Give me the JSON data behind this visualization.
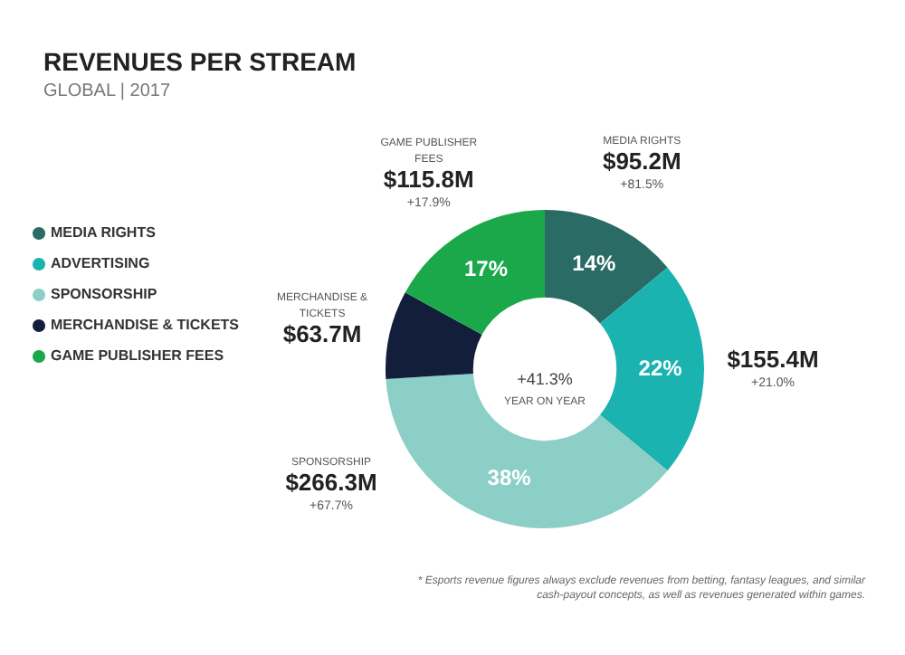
{
  "chart_data": {
    "type": "donut",
    "title": "REVENUES PER STREAM",
    "subtitle": "GLOBAL | 2017",
    "categories": [
      "MEDIA RIGHTS",
      "ADVERTISING",
      "SPONSORSHIP",
      "MERCHANDISE & TICKETS",
      "GAME PUBLISHER FEES"
    ],
    "values": [
      14,
      22,
      38,
      9,
      17
    ],
    "colors": [
      "#2a6b66",
      "#1ab3b0",
      "#8ccfc6",
      "#131f3a",
      "#1aa84a"
    ],
    "value_labels": [
      "14%",
      "22%",
      "38%",
      null,
      "17%"
    ],
    "legend": "left",
    "annotations": [
      {
        "text": "MEDIA RIGHTS",
        "x": "MEDIA RIGHTS"
      },
      {
        "text": "$95.2M",
        "x": "MEDIA RIGHTS"
      },
      {
        "text": "+81.5%",
        "x": "MEDIA RIGHTS"
      },
      {
        "text": "$155.4M",
        "x": "ADVERTISING"
      },
      {
        "text": "+21.0%",
        "x": "ADVERTISING"
      },
      {
        "text": "SPONSORSHIP",
        "x": "SPONSORSHIP"
      },
      {
        "text": "$266.3M",
        "x": "SPONSORSHIP"
      },
      {
        "text": "+67.7%",
        "x": "SPONSORSHIP"
      },
      {
        "text": "MERCHANDISE & TICKETS",
        "x": "MERCHANDISE & TICKETS"
      },
      {
        "text": "$63.7M",
        "x": "MERCHANDISE & TICKETS"
      },
      {
        "text": "GAME PUBLISHER FEES",
        "x": "GAME PUBLISHER FEES"
      },
      {
        "text": "$115.8M",
        "x": "GAME PUBLISHER FEES"
      },
      {
        "text": "+17.9%",
        "x": "GAME PUBLISHER FEES"
      },
      "+41.3%",
      "YEAR ON YEAR",
      "* Esports revenue figures always exclude revenues from betting, fantasy leagues, and similar cash-payout concepts, as well as revenues generated within games."
    ]
  }
}
